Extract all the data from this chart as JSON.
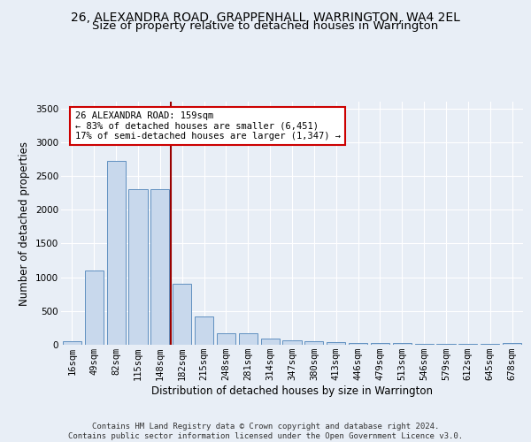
{
  "title": "26, ALEXANDRA ROAD, GRAPPENHALL, WARRINGTON, WA4 2EL",
  "subtitle": "Size of property relative to detached houses in Warrington",
  "xlabel": "Distribution of detached houses by size in Warrington",
  "ylabel": "Number of detached properties",
  "categories": [
    "16sqm",
    "49sqm",
    "82sqm",
    "115sqm",
    "148sqm",
    "182sqm",
    "215sqm",
    "248sqm",
    "281sqm",
    "314sqm",
    "347sqm",
    "380sqm",
    "413sqm",
    "446sqm",
    "479sqm",
    "513sqm",
    "546sqm",
    "579sqm",
    "612sqm",
    "645sqm",
    "678sqm"
  ],
  "values": [
    55,
    1100,
    2720,
    2300,
    2300,
    900,
    420,
    175,
    165,
    95,
    60,
    55,
    45,
    25,
    20,
    20,
    15,
    12,
    10,
    8,
    25
  ],
  "bar_color": "#c8d8ec",
  "bar_edge_color": "#6090c0",
  "vline_x": 4.5,
  "vline_color": "#990000",
  "annotation_text": "26 ALEXANDRA ROAD: 159sqm\n← 83% of detached houses are smaller (6,451)\n17% of semi-detached houses are larger (1,347) →",
  "annotation_box_color": "#ffffff",
  "annotation_box_edge": "#cc0000",
  "ylim": [
    0,
    3600
  ],
  "yticks": [
    0,
    500,
    1000,
    1500,
    2000,
    2500,
    3000,
    3500
  ],
  "bg_color": "#e8eef6",
  "grid_color": "#ffffff",
  "footer": "Contains HM Land Registry data © Crown copyright and database right 2024.\nContains public sector information licensed under the Open Government Licence v3.0.",
  "title_fontsize": 10,
  "subtitle_fontsize": 9.5,
  "xlabel_fontsize": 8.5,
  "ylabel_fontsize": 8.5,
  "tick_fontsize": 7.5,
  "annotation_fontsize": 7.5,
  "footer_fontsize": 6.5
}
